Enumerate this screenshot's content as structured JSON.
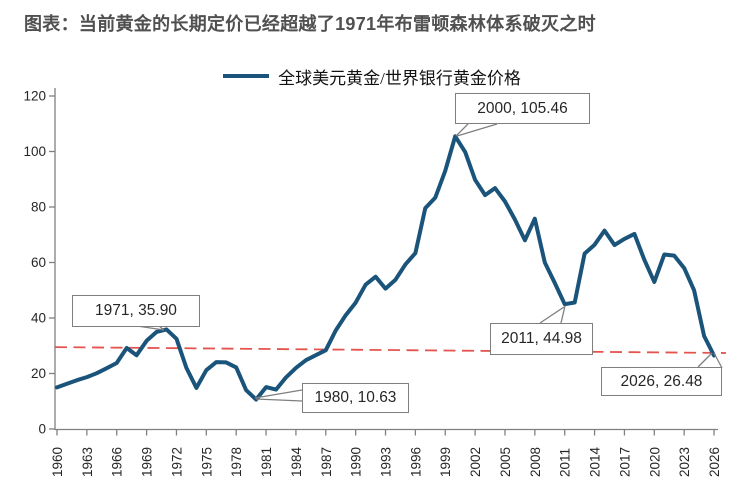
{
  "title": "图表：当前黄金的长期定价已经超越了1971年布雷顿森林体系破灭之时",
  "legend": {
    "label": "全球美元黄金/世界银行黄金价格"
  },
  "colors": {
    "series_line": "#1A547B",
    "trend_line": "#E4544E",
    "title_text": "#505050",
    "axis": "#808080",
    "tick_text": "#262626",
    "callout_border": "#7F7F7F",
    "callout_text": "#262626"
  },
  "chart_data": {
    "type": "line",
    "title": "图表：当前黄金的长期定价已经超越了1971年布雷顿森林体系破灭之时",
    "xlabel": "",
    "ylabel": "",
    "ylim": [
      0,
      120
    ],
    "y_ticks": [
      0,
      20,
      40,
      60,
      80,
      100,
      120
    ],
    "x_tick_labels": [
      "1960",
      "1963",
      "1966",
      "1969",
      "1972",
      "1975",
      "1978",
      "1981",
      "1984",
      "1987",
      "1990",
      "1993",
      "1996",
      "1999",
      "2002",
      "2005",
      "2008",
      "2011",
      "2014",
      "2017",
      "2020",
      "2023",
      "2026"
    ],
    "grid": false,
    "legend_position": "top-center",
    "series": [
      {
        "name": "全球美元黄金/世界银行黄金价格",
        "x": [
          1960,
          1961,
          1962,
          1963,
          1964,
          1965,
          1966,
          1967,
          1968,
          1969,
          1970,
          1971,
          1972,
          1973,
          1974,
          1975,
          1976,
          1977,
          1978,
          1979,
          1980,
          1981,
          1982,
          1983,
          1984,
          1985,
          1986,
          1987,
          1988,
          1989,
          1990,
          1991,
          1992,
          1993,
          1994,
          1995,
          1996,
          1997,
          1998,
          1999,
          2000,
          2001,
          2002,
          2003,
          2004,
          2005,
          2006,
          2007,
          2008,
          2009,
          2010,
          2011,
          2012,
          2013,
          2014,
          2015,
          2016,
          2017,
          2018,
          2019,
          2020,
          2021,
          2022,
          2023,
          2024,
          2025,
          2026
        ],
        "values": [
          15.0,
          16.3,
          17.6,
          18.7,
          20.1,
          21.9,
          23.8,
          29.2,
          26.6,
          31.8,
          35.0,
          35.9,
          32.5,
          22.0,
          14.8,
          21.2,
          24.1,
          24.0,
          22.2,
          14.0,
          10.63,
          15.1,
          14.2,
          18.6,
          22.0,
          24.8,
          26.6,
          28.4,
          35.5,
          41.0,
          45.5,
          52.0,
          54.9,
          50.6,
          53.8,
          59.3,
          63.4,
          79.6,
          83.4,
          93.0,
          105.46,
          99.8,
          89.8,
          84.3,
          86.8,
          82.0,
          75.5,
          68.0,
          75.8,
          60.0,
          52.6,
          44.98,
          45.6,
          63.2,
          66.4,
          71.5,
          66.3,
          68.5,
          70.3,
          61.0,
          53.0,
          62.9,
          62.5,
          58.0,
          50.0,
          33.5,
          26.48
        ]
      }
    ],
    "trendline": {
      "style": "dashed",
      "start": {
        "year": 1960,
        "value": 29.5
      },
      "end": {
        "year": 2027,
        "value": 27.4
      }
    },
    "annotations": [
      {
        "label": "1971, 35.90",
        "year": 1971,
        "value": 35.9
      },
      {
        "label": "1980, 10.63",
        "year": 1980,
        "value": 10.63
      },
      {
        "label": "2000, 105.46",
        "year": 2000,
        "value": 105.46
      },
      {
        "label": "2011, 44.98",
        "year": 2011,
        "value": 44.98
      },
      {
        "label": "2026, 26.48",
        "year": 2026,
        "value": 26.48
      }
    ]
  }
}
